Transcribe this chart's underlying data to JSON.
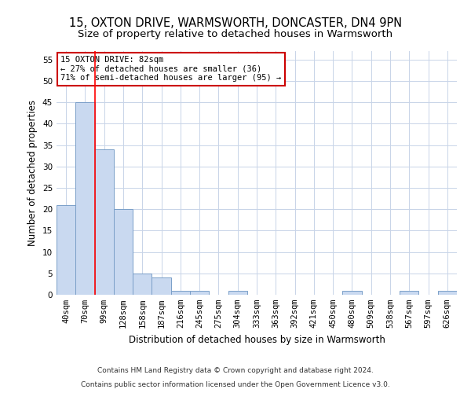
{
  "title1": "15, OXTON DRIVE, WARMSWORTH, DONCASTER, DN4 9PN",
  "title2": "Size of property relative to detached houses in Warmsworth",
  "xlabel": "Distribution of detached houses by size in Warmsworth",
  "ylabel": "Number of detached properties",
  "categories": [
    "40sqm",
    "70sqm",
    "99sqm",
    "128sqm",
    "158sqm",
    "187sqm",
    "216sqm",
    "245sqm",
    "275sqm",
    "304sqm",
    "333sqm",
    "363sqm",
    "392sqm",
    "421sqm",
    "450sqm",
    "480sqm",
    "509sqm",
    "538sqm",
    "567sqm",
    "597sqm",
    "626sqm"
  ],
  "values": [
    21,
    45,
    34,
    20,
    5,
    4,
    1,
    1,
    0,
    1,
    0,
    0,
    0,
    0,
    0,
    1,
    0,
    0,
    1,
    0,
    1
  ],
  "bar_color": "#c9d9f0",
  "bar_edge_color": "#7a9fc8",
  "annotation_line1": "15 OXTON DRIVE: 82sqm",
  "annotation_line2": "← 27% of detached houses are smaller (36)",
  "annotation_line3": "71% of semi-detached houses are larger (95) →",
  "annotation_box_color": "#ffffff",
  "annotation_box_edgecolor": "#cc0000",
  "vline_x": 1.5,
  "ylim": [
    0,
    57
  ],
  "yticks": [
    0,
    5,
    10,
    15,
    20,
    25,
    30,
    35,
    40,
    45,
    50,
    55
  ],
  "footnote1": "Contains HM Land Registry data © Crown copyright and database right 2024.",
  "footnote2": "Contains public sector information licensed under the Open Government Licence v3.0.",
  "background_color": "#ffffff",
  "grid_color": "#c8d4e8",
  "title_fontsize": 10.5,
  "subtitle_fontsize": 9.5,
  "axis_label_fontsize": 8.5,
  "tick_fontsize": 7.5,
  "annotation_fontsize": 7.5,
  "footnote_fontsize": 6.5
}
